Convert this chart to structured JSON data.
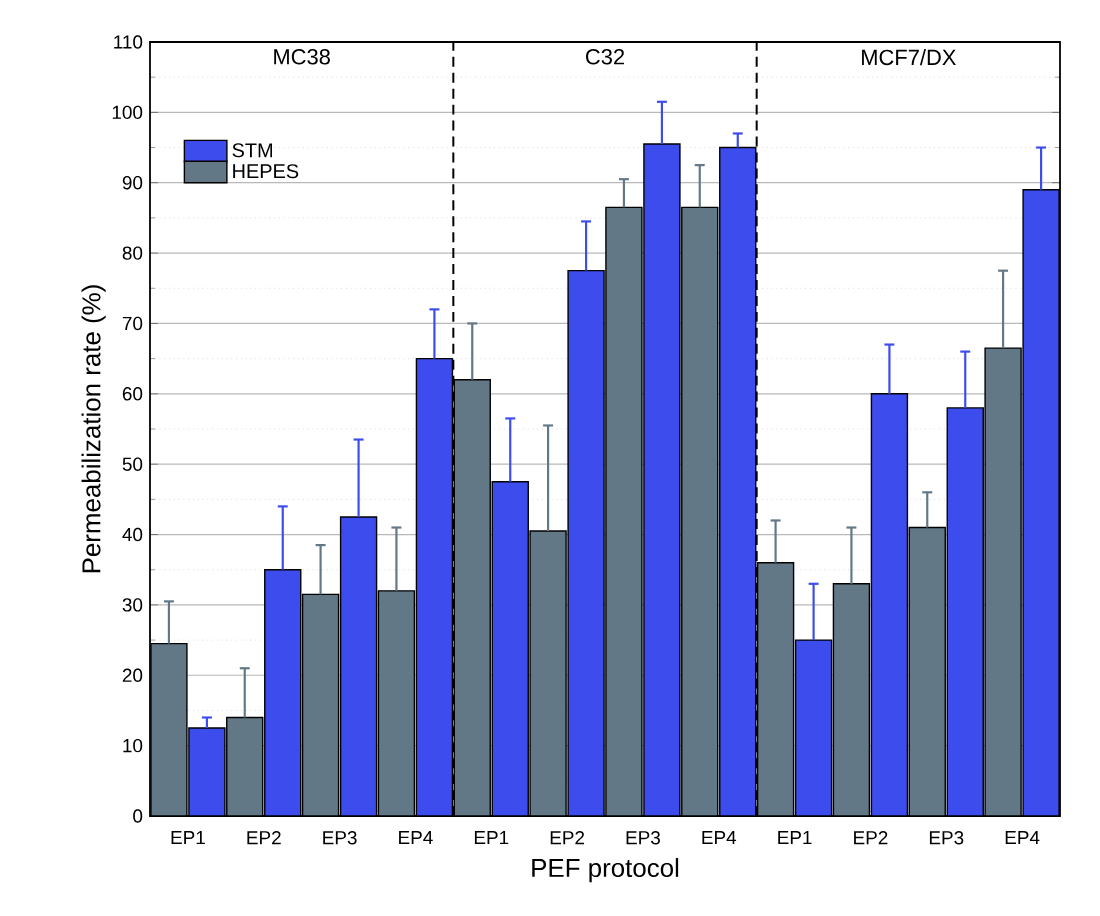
{
  "chart_data": {
    "type": "bar",
    "xlabel": "PEF protocol",
    "ylabel": "Permeabilization rate (%)",
    "categories": [
      "EP1",
      "EP2",
      "EP3",
      "EP4",
      "EP1",
      "EP2",
      "EP3",
      "EP4",
      "EP1",
      "EP2",
      "EP3",
      "EP4"
    ],
    "series": [
      {
        "name": "HEPES",
        "color": "#627887",
        "values": [
          24.5,
          14,
          31.5,
          32,
          62,
          40.5,
          86.5,
          86.5,
          36,
          33,
          41,
          66.5
        ],
        "errors": [
          [
            24.5,
            30.5
          ],
          [
            14,
            21
          ],
          [
            31.5,
            38.5
          ],
          [
            32,
            41
          ],
          [
            62,
            70
          ],
          [
            40.5,
            55.5
          ],
          [
            86.5,
            90.5
          ],
          [
            86.5,
            92.5
          ],
          [
            36,
            42
          ],
          [
            33,
            41
          ],
          [
            41,
            46
          ],
          [
            66.5,
            77.5
          ]
        ]
      },
      {
        "name": "STM",
        "color": "#3d4ded",
        "values": [
          12.5,
          35,
          42.5,
          65,
          47.5,
          77.5,
          95.5,
          95,
          25,
          60,
          58,
          89
        ],
        "errors": [
          [
            12.5,
            14
          ],
          [
            35,
            44
          ],
          [
            42.5,
            53.5
          ],
          [
            65,
            72
          ],
          [
            47.5,
            56.5
          ],
          [
            77.5,
            84.5
          ],
          [
            95.5,
            101.5
          ],
          [
            95,
            97
          ],
          [
            25,
            33
          ],
          [
            60,
            67
          ],
          [
            58,
            66
          ],
          [
            89,
            95
          ]
        ]
      }
    ],
    "ylim": [
      0,
      110
    ],
    "yticks": [
      0,
      10,
      20,
      30,
      40,
      50,
      60,
      70,
      80,
      90,
      100,
      110
    ],
    "grid": "y",
    "legend": "top left",
    "annotations": [
      "MC38",
      "C32",
      "MCF7/DX"
    ]
  }
}
